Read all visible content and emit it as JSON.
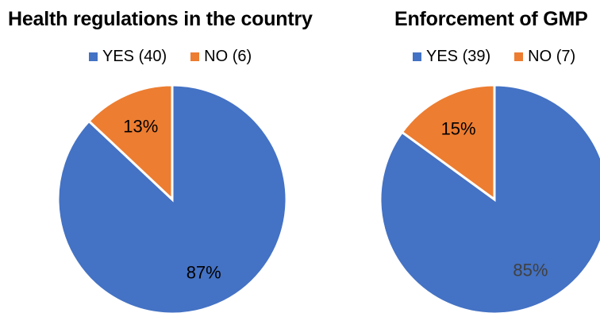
{
  "chart_data": [
    {
      "type": "pie",
      "title": "Health regulations in the country",
      "legend_position": "top",
      "series": [
        {
          "name": "YES (40)",
          "value": 87,
          "label": "87%",
          "color": "#4472C4",
          "label_color": "#000000"
        },
        {
          "name": "NO (6)",
          "value": 13,
          "label": "13%",
          "color": "#ED7D31",
          "label_color": "#000000"
        }
      ]
    },
    {
      "type": "pie",
      "title": "Enforcement of GMP",
      "legend_position": "top",
      "series": [
        {
          "name": "YES (39)",
          "value": 85,
          "label": "85%",
          "color": "#4472C4",
          "label_color": "#404040"
        },
        {
          "name": "NO (7)",
          "value": 15,
          "label": "15%",
          "color": "#ED7D31",
          "label_color": "#000000"
        }
      ]
    }
  ]
}
